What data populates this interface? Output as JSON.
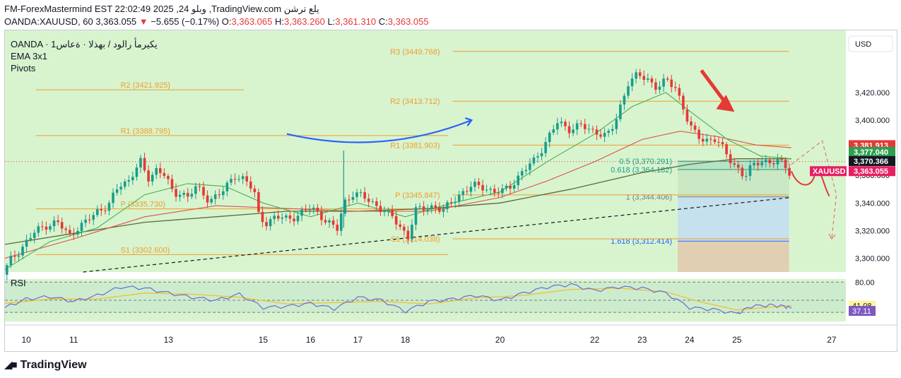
{
  "header": {
    "line1": "FM-ForexMastermind EST 22:02:49 2025 ,24 وبلو ,TradingView.com يلع ترشن",
    "symbol": "OANDA:XAUUSD, 60",
    "last": "3,363.055",
    "change_arrow": "▼",
    "change": "−5.655 (−0.17%)",
    "o_label": "O:",
    "o": "3,363.065",
    "h_label": "H:",
    "h": "3,363.260",
    "l_label": "L:",
    "l": "3,361.310",
    "c_label": "C:",
    "c": "3,363.055"
  },
  "legend": {
    "line1": "OANDA · يكيرمأ رالود / بهذلا · ةعاس1",
    "line2": "EMA 3x1",
    "line3": "Pivots"
  },
  "currency_button": "USD",
  "rsi_label": "RSI",
  "footer_brand": "TradingView",
  "colors": {
    "background": "#d7f4cf",
    "up": "#1a9c8c",
    "down": "#e53935",
    "pivot": "#f39c2c",
    "fib_blue": "#c5e1ee",
    "fib_tan": "#e0cfb3",
    "rsi_line": "#6b6bd6",
    "rsi_ma": "#f2c12e"
  },
  "chart_data": {
    "type": "candlestick",
    "symbol": "XAUUSD",
    "timeframe": "60",
    "ylim": [
      3290,
      3465
    ],
    "y_ticks": [
      {
        "value": 3300,
        "label": "3,300.000"
      },
      {
        "value": 3320,
        "label": "3,320.000"
      },
      {
        "value": 3340,
        "label": "3,340.000"
      },
      {
        "value": 3360,
        "label": "3,360.000"
      },
      {
        "value": 3380,
        "label": "3,380.000"
      },
      {
        "value": 3400,
        "label": "3,400.000"
      },
      {
        "value": 3420,
        "label": "3,420.000"
      }
    ],
    "x_range": [
      9.55,
      27.3
    ],
    "x_ticks": [
      {
        "value": 10,
        "label": "10"
      },
      {
        "value": 11,
        "label": "11"
      },
      {
        "value": 13,
        "label": "13"
      },
      {
        "value": 15,
        "label": "15"
      },
      {
        "value": 16,
        "label": "16"
      },
      {
        "value": 17,
        "label": "17"
      },
      {
        "value": 18,
        "label": "18"
      },
      {
        "value": 20,
        "label": "20"
      },
      {
        "value": 22,
        "label": "22"
      },
      {
        "value": 23,
        "label": "23"
      },
      {
        "value": 24,
        "label": "24"
      },
      {
        "value": 25,
        "label": "25"
      },
      {
        "value": 27,
        "label": "27"
      }
    ],
    "price_path": [
      [
        9.55,
        3288
      ],
      [
        9.7,
        3298
      ],
      [
        9.95,
        3308
      ],
      [
        10.2,
        3318
      ],
      [
        10.45,
        3324
      ],
      [
        10.7,
        3326
      ],
      [
        10.95,
        3316
      ],
      [
        11.1,
        3322
      ],
      [
        11.3,
        3326
      ],
      [
        11.55,
        3334
      ],
      [
        11.8,
        3340
      ],
      [
        12.0,
        3352
      ],
      [
        12.2,
        3356
      ],
      [
        12.35,
        3366
      ],
      [
        12.45,
        3370
      ],
      [
        12.6,
        3356
      ],
      [
        12.8,
        3365
      ],
      [
        12.95,
        3362
      ],
      [
        13.05,
        3354
      ],
      [
        13.15,
        3344
      ],
      [
        13.3,
        3348
      ],
      [
        13.45,
        3345
      ],
      [
        13.6,
        3352
      ],
      [
        13.75,
        3346
      ],
      [
        13.9,
        3342
      ],
      [
        14.05,
        3346
      ],
      [
        14.25,
        3350
      ],
      [
        14.45,
        3360
      ],
      [
        14.65,
        3358
      ],
      [
        14.85,
        3348
      ],
      [
        14.95,
        3330
      ],
      [
        15.1,
        3326
      ],
      [
        15.3,
        3330
      ],
      [
        15.55,
        3328
      ],
      [
        15.8,
        3332
      ],
      [
        16.0,
        3336
      ],
      [
        16.15,
        3334
      ],
      [
        16.3,
        3330
      ],
      [
        16.45,
        3325
      ],
      [
        16.6,
        3320
      ],
      [
        16.75,
        3340
      ],
      [
        16.95,
        3348
      ],
      [
        17.15,
        3344
      ],
      [
        17.35,
        3340
      ],
      [
        17.55,
        3336
      ],
      [
        17.75,
        3330
      ],
      [
        17.95,
        3322
      ],
      [
        18.1,
        3316
      ],
      [
        18.25,
        3334
      ],
      [
        18.45,
        3336
      ],
      [
        18.65,
        3338
      ],
      [
        18.85,
        3334
      ],
      [
        19.05,
        3342
      ],
      [
        19.25,
        3348
      ],
      [
        19.45,
        3352
      ],
      [
        19.7,
        3352
      ],
      [
        19.9,
        3348
      ],
      [
        20.1,
        3348
      ],
      [
        20.3,
        3354
      ],
      [
        20.5,
        3362
      ],
      [
        20.75,
        3370
      ],
      [
        21.0,
        3384
      ],
      [
        21.25,
        3398
      ],
      [
        21.5,
        3394
      ],
      [
        21.75,
        3396
      ],
      [
        21.95,
        3392
      ],
      [
        22.1,
        3392
      ],
      [
        22.3,
        3388
      ],
      [
        22.45,
        3396
      ],
      [
        22.6,
        3412
      ],
      [
        22.75,
        3428
      ],
      [
        22.95,
        3432
      ],
      [
        23.15,
        3430
      ],
      [
        23.35,
        3424
      ],
      [
        23.55,
        3428
      ],
      [
        23.75,
        3424
      ],
      [
        23.9,
        3410
      ],
      [
        24.05,
        3395
      ],
      [
        24.2,
        3388
      ],
      [
        24.4,
        3386
      ],
      [
        24.6,
        3386
      ],
      [
        24.8,
        3376
      ],
      [
        25.0,
        3368
      ],
      [
        25.2,
        3358
      ],
      [
        25.35,
        3366
      ],
      [
        25.55,
        3372
      ],
      [
        25.75,
        3368
      ],
      [
        25.9,
        3370
      ],
      [
        26.05,
        3368
      ],
      [
        26.15,
        3363
      ]
    ],
    "last_price": {
      "value": 3363.055,
      "label": "3,363.055",
      "tag": "XAUUSD"
    },
    "price_tags": [
      {
        "value": 3381.913,
        "label": "3,381.913",
        "bg": "#e53935"
      },
      {
        "value": 3377.04,
        "label": "3,377.040",
        "bg": "#2e9e4f"
      },
      {
        "value": 3370.366,
        "label": "3,370.366",
        "bg": "#131722"
      }
    ],
    "ema_fast": [
      [
        9.55,
        3292
      ],
      [
        10.5,
        3312
      ],
      [
        11.5,
        3322
      ],
      [
        12.5,
        3346
      ],
      [
        13.4,
        3354
      ],
      [
        14.2,
        3352
      ],
      [
        15.0,
        3340
      ],
      [
        16.0,
        3330
      ],
      [
        17.0,
        3340
      ],
      [
        18.0,
        3330
      ],
      [
        19.0,
        3340
      ],
      [
        20.0,
        3348
      ],
      [
        21.0,
        3370
      ],
      [
        22.0,
        3390
      ],
      [
        22.8,
        3410
      ],
      [
        23.5,
        3420
      ],
      [
        24.1,
        3404
      ],
      [
        24.8,
        3386
      ],
      [
        25.5,
        3374
      ],
      [
        26.15,
        3372
      ]
    ],
    "ema_mid": [
      [
        9.55,
        3300
      ],
      [
        11.0,
        3314
      ],
      [
        12.5,
        3330
      ],
      [
        14.0,
        3338
      ],
      [
        15.5,
        3336
      ],
      [
        17.0,
        3334
      ],
      [
        18.5,
        3334
      ],
      [
        20.0,
        3344
      ],
      [
        21.0,
        3356
      ],
      [
        22.0,
        3370
      ],
      [
        23.0,
        3386
      ],
      [
        23.8,
        3392
      ],
      [
        24.6,
        3388
      ],
      [
        25.4,
        3382
      ],
      [
        26.15,
        3380
      ]
    ],
    "ema_slow": [
      [
        9.55,
        3310
      ],
      [
        11.0,
        3318
      ],
      [
        12.5,
        3326
      ],
      [
        14.0,
        3330
      ],
      [
        15.5,
        3334
      ],
      [
        17.0,
        3334
      ],
      [
        18.5,
        3336
      ],
      [
        20.0,
        3340
      ],
      [
        21.5,
        3350
      ],
      [
        23.0,
        3362
      ],
      [
        24.0,
        3368
      ],
      [
        25.0,
        3372
      ],
      [
        26.15,
        3372
      ]
    ],
    "pivots_left": [
      {
        "name": "R2",
        "value": 3421.925,
        "label": "R2 (3421.925)",
        "x0": 10.2,
        "x1": 13.0
      },
      {
        "name": "R1",
        "value": 3388.795,
        "label": "R1 (3388.795)",
        "x0": 10.2,
        "x1": 13.0
      },
      {
        "name": "P",
        "value": 3335.73,
        "label": "P (3335.730)",
        "x0": 10.2,
        "x1": 13.0
      },
      {
        "name": "S1",
        "value": 3302.6,
        "label": "S1 (3302.600)",
        "x0": 10.2,
        "x1": 13.0
      }
    ],
    "pivots_mid_segments": [
      {
        "value": 3388.795,
        "x0": 13.0,
        "x1": 18.9
      },
      {
        "value": 3335.73,
        "x0": 13.0,
        "x1": 18.9
      },
      {
        "value": 3302.6,
        "x0": 13.0,
        "x1": 18.9
      },
      {
        "value": 3421.925,
        "x0": 13.0,
        "x1": 14.6
      }
    ],
    "pivots_right": [
      {
        "name": "R3",
        "value": 3449.768,
        "label": "R3 (3449.768)",
        "x0": 19.0,
        "x1": 26.1
      },
      {
        "name": "R2",
        "value": 3413.712,
        "label": "R2 (3413.712)",
        "x0": 19.0,
        "x1": 26.1
      },
      {
        "name": "R1",
        "value": 3381.903,
        "label": "R1 (3381.903)",
        "x0": 19.0,
        "x1": 26.1
      },
      {
        "name": "P",
        "value": 3345.847,
        "label": "P (3345.847)",
        "x0": 19.0,
        "x1": 26.1
      },
      {
        "name": "S1",
        "value": 3314.038,
        "label": "S1 (3314.038)",
        "x0": 19.0,
        "x1": 26.1
      }
    ],
    "fib_levels": [
      {
        "ratio": "0.5",
        "value": 3370.291,
        "label": "0.5 (3,370.291)"
      },
      {
        "ratio": "0.618",
        "value": 3364.182,
        "label": "0.618 (3,364.182)"
      },
      {
        "ratio": "1",
        "value": 3344.406,
        "label": "1 (3,344.406)"
      },
      {
        "ratio": "1.618",
        "value": 3312.414,
        "label": "1.618 (3,312.414)"
      }
    ],
    "fib_x_range": [
      23.75,
      26.1
    ],
    "fib_zone_bottom": 3290,
    "trendline": [
      [
        11.2,
        3290
      ],
      [
        26.15,
        3344
      ]
    ],
    "forecast_path": [
      [
        26.15,
        3363
      ],
      [
        26.35,
        3352
      ],
      [
        26.55,
        3356
      ],
      [
        26.7,
        3360
      ],
      [
        26.85,
        3346
      ],
      [
        26.95,
        3345
      ]
    ],
    "forecast_dashed_up": [
      [
        26.15,
        3368
      ],
      [
        26.8,
        3385
      ],
      [
        27.1,
        3346
      ],
      [
        27.0,
        3314
      ]
    ],
    "forecast_arcs": [
      [
        15.5,
        3390
      ],
      [
        16.4,
        3381
      ],
      [
        17.5,
        3380
      ],
      [
        18.4,
        3387
      ],
      [
        19.4,
        3400
      ]
    ],
    "red_arrow": [
      [
        24.25,
        3436
      ],
      [
        24.95,
        3406
      ]
    ],
    "rsi": {
      "ylim": [
        15,
        85
      ],
      "levels": [
        {
          "value": 80,
          "label": "80.00"
        },
        {
          "value": 50,
          "label": ""
        },
        {
          "value": 30,
          "label": ""
        }
      ],
      "rsi_tag": {
        "value": 37.11,
        "label": "37.11"
      },
      "ma_tag": {
        "value": 41.08,
        "label": "41.08"
      },
      "rsi_values": [
        [
          9.55,
          38
        ],
        [
          10.0,
          52
        ],
        [
          10.5,
          56
        ],
        [
          11.0,
          48
        ],
        [
          11.5,
          58
        ],
        [
          12.0,
          72
        ],
        [
          12.5,
          70
        ],
        [
          13.0,
          62
        ],
        [
          13.5,
          55
        ],
        [
          14.0,
          50
        ],
        [
          14.5,
          60
        ],
        [
          15.0,
          38
        ],
        [
          15.5,
          40
        ],
        [
          16.0,
          45
        ],
        [
          16.5,
          36
        ],
        [
          17.0,
          55
        ],
        [
          17.5,
          50
        ],
        [
          18.0,
          32
        ],
        [
          18.5,
          48
        ],
        [
          19.0,
          52
        ],
        [
          19.5,
          58
        ],
        [
          20.0,
          50
        ],
        [
          20.5,
          62
        ],
        [
          21.0,
          72
        ],
        [
          21.5,
          76
        ],
        [
          22.0,
          66
        ],
        [
          22.5,
          72
        ],
        [
          23.0,
          70
        ],
        [
          23.5,
          62
        ],
        [
          24.0,
          38
        ],
        [
          24.5,
          35
        ],
        [
          25.0,
          28
        ],
        [
          25.3,
          40
        ],
        [
          25.7,
          42
        ],
        [
          26.0,
          40
        ],
        [
          26.15,
          37
        ]
      ],
      "ma_values": [
        [
          9.55,
          45
        ],
        [
          10.5,
          52
        ],
        [
          11.5,
          52
        ],
        [
          12.5,
          62
        ],
        [
          13.5,
          60
        ],
        [
          14.5,
          55
        ],
        [
          15.5,
          44
        ],
        [
          16.5,
          46
        ],
        [
          17.5,
          48
        ],
        [
          18.5,
          44
        ],
        [
          19.5,
          54
        ],
        [
          20.5,
          58
        ],
        [
          21.5,
          68
        ],
        [
          22.5,
          70
        ],
        [
          23.5,
          64
        ],
        [
          24.2,
          48
        ],
        [
          25.0,
          34
        ],
        [
          25.6,
          38
        ],
        [
          26.15,
          41
        ]
      ]
    }
  }
}
